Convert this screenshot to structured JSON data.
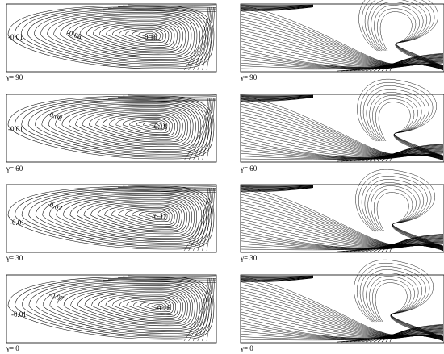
{
  "rows": [
    {
      "gamma_label": "γ= 90",
      "streamfunction": {
        "edge_label": "-0.01",
        "mid_label": "-0.08",
        "core_label": "-0.18"
      },
      "temperature": {
        "caption": "γ= 90"
      }
    },
    {
      "gamma_label": "γ= 60",
      "streamfunction": {
        "edge_label": "-0.01",
        "mid_label": "-0.08",
        "core_label": "-0.18"
      },
      "temperature": {
        "caption": "γ= 60"
      }
    },
    {
      "gamma_label": "γ= 30",
      "streamfunction": {
        "edge_label": "-0.01",
        "mid_label": "-0.07",
        "core_label": "-0.17"
      },
      "temperature": {
        "caption": "γ= 30"
      }
    },
    {
      "gamma_label": "γ= 0",
      "streamfunction": {
        "edge_label": "-0.01",
        "mid_label": "-0.07",
        "core_label": "-0.16"
      },
      "temperature": {
        "caption": "γ= 0"
      }
    }
  ]
}
